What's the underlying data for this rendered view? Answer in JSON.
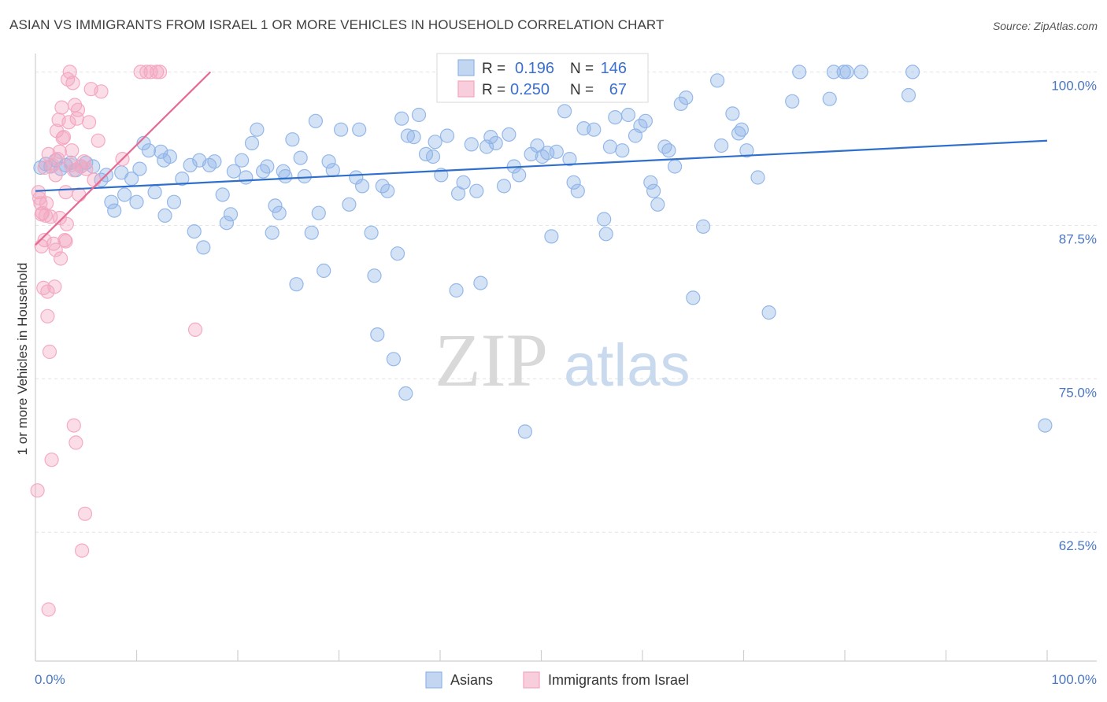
{
  "chart_data": {
    "type": "scatter",
    "title": "ASIAN VS IMMIGRANTS FROM ISRAEL 1 OR MORE VEHICLES IN HOUSEHOLD CORRELATION CHART",
    "source": "Source: ZipAtlas.com",
    "xlabel": "",
    "ylabel": "1 or more Vehicles in Household",
    "xlim": [
      0,
      100
    ],
    "ylim": [
      52,
      101.5
    ],
    "x_tick_labels": {
      "left": "0.0%",
      "right": "100.0%"
    },
    "y_ticks": [
      {
        "value": 100,
        "label": "100.0%"
      },
      {
        "value": 87.5,
        "label": "87.5%"
      },
      {
        "value": 75,
        "label": "75.0%"
      },
      {
        "value": 62.5,
        "label": "62.5%"
      }
    ],
    "grid": true,
    "legend": {
      "placement": "top-center",
      "entries": [
        {
          "r_label": "R =",
          "r_value": "0.196",
          "n_label": "N =",
          "n_value": "146"
        },
        {
          "r_label": "R =",
          "r_value": "0.250",
          "n_label": "N =",
          "n_value": "67"
        }
      ]
    },
    "watermark": {
      "zip": "ZIP",
      "atlas": "atlas"
    },
    "series": [
      {
        "name": "Asians",
        "color": "#8fb4e8",
        "line_color": "#2f6fcc",
        "trend": {
          "x": [
            0,
            100
          ],
          "y": [
            90.3,
            94.4
          ]
        },
        "points": [
          [
            0.5,
            92.2
          ],
          [
            1,
            92.5
          ],
          [
            1.5,
            92.3
          ],
          [
            2,
            92.8
          ],
          [
            2.5,
            92.1
          ],
          [
            3,
            92.4
          ],
          [
            3.5,
            92.6
          ],
          [
            4,
            92.0
          ],
          [
            4.5,
            92.3
          ],
          [
            5,
            92.6
          ],
          [
            5.7,
            92.3
          ],
          [
            6.5,
            91.2
          ],
          [
            7,
            91.6
          ],
          [
            7.5,
            89.4
          ],
          [
            7.8,
            88.7
          ],
          [
            8.5,
            91.8
          ],
          [
            8.8,
            90.0
          ],
          [
            9.5,
            91.3
          ],
          [
            10,
            89.4
          ],
          [
            10.3,
            92.1
          ],
          [
            10.7,
            94.2
          ],
          [
            11.2,
            93.6
          ],
          [
            11.8,
            90.2
          ],
          [
            12.4,
            93.5
          ],
          [
            12.7,
            92.8
          ],
          [
            13.3,
            93.1
          ],
          [
            13.7,
            89.4
          ],
          [
            14.5,
            91.3
          ],
          [
            15.3,
            92.4
          ],
          [
            15.7,
            87.0
          ],
          [
            16.2,
            92.8
          ],
          [
            16.6,
            85.7
          ],
          [
            17.2,
            92.4
          ],
          [
            17.7,
            92.7
          ],
          [
            18.5,
            90.0
          ],
          [
            18.9,
            87.7
          ],
          [
            19.3,
            88.4
          ],
          [
            19.6,
            91.9
          ],
          [
            20.4,
            92.8
          ],
          [
            20.8,
            91.4
          ],
          [
            21.4,
            94.2
          ],
          [
            21.9,
            95.3
          ],
          [
            22.5,
            91.9
          ],
          [
            22.9,
            92.3
          ],
          [
            23.4,
            86.9
          ],
          [
            23.7,
            89.1
          ],
          [
            24.1,
            88.5
          ],
          [
            24.7,
            91.5
          ],
          [
            25.4,
            94.5
          ],
          [
            25.8,
            82.7
          ],
          [
            26.2,
            93.0
          ],
          [
            26.6,
            91.5
          ],
          [
            27.3,
            86.9
          ],
          [
            27.7,
            96.0
          ],
          [
            28,
            88.5
          ],
          [
            28.5,
            83.8
          ],
          [
            29,
            92.7
          ],
          [
            29.4,
            92.0
          ],
          [
            30.2,
            95.3
          ],
          [
            31,
            89.2
          ],
          [
            31.7,
            91.4
          ],
          [
            32,
            95.3
          ],
          [
            32.3,
            90.7
          ],
          [
            33.2,
            86.9
          ],
          [
            33.5,
            83.4
          ],
          [
            33.8,
            78.6
          ],
          [
            34.3,
            90.7
          ],
          [
            34.8,
            90.3
          ],
          [
            35.4,
            76.6
          ],
          [
            35.8,
            85.2
          ],
          [
            36.2,
            96.2
          ],
          [
            36.8,
            94.8
          ],
          [
            37.4,
            94.7
          ],
          [
            37.9,
            96.5
          ],
          [
            38.6,
            93.3
          ],
          [
            39.3,
            93.1
          ],
          [
            40.1,
            91.6
          ],
          [
            40.7,
            94.8
          ],
          [
            41.6,
            82.2
          ],
          [
            41.8,
            90.1
          ],
          [
            42.3,
            91.0
          ],
          [
            43.1,
            94.1
          ],
          [
            43.6,
            90.3
          ],
          [
            44,
            82.8
          ],
          [
            44.6,
            93.9
          ],
          [
            45,
            94.7
          ],
          [
            45.5,
            94.2
          ],
          [
            46.3,
            90.7
          ],
          [
            46.8,
            94.9
          ],
          [
            47.3,
            92.3
          ],
          [
            47.8,
            91.6
          ],
          [
            48.4,
            70.7
          ],
          [
            49,
            93.3
          ],
          [
            49.6,
            94.0
          ],
          [
            50.1,
            93.1
          ],
          [
            50.6,
            93.4
          ],
          [
            51,
            86.6
          ],
          [
            51.5,
            93.5
          ],
          [
            52.3,
            96.8
          ],
          [
            52.8,
            92.9
          ],
          [
            53.2,
            91.0
          ],
          [
            53.6,
            90.3
          ],
          [
            54.2,
            95.4
          ],
          [
            55.2,
            95.3
          ],
          [
            56.2,
            88.0
          ],
          [
            56.4,
            86.8
          ],
          [
            56.8,
            93.9
          ],
          [
            57.3,
            96.3
          ],
          [
            58,
            93.6
          ],
          [
            58.6,
            96.5
          ],
          [
            59.3,
            94.8
          ],
          [
            59.8,
            95.6
          ],
          [
            60.3,
            96.0
          ],
          [
            60.8,
            91.0
          ],
          [
            61.1,
            90.3
          ],
          [
            61.5,
            89.2
          ],
          [
            62.2,
            93.9
          ],
          [
            62.6,
            93.6
          ],
          [
            63.2,
            92.3
          ],
          [
            63.8,
            97.4
          ],
          [
            64.3,
            97.9
          ],
          [
            65,
            81.6
          ],
          [
            66,
            87.4
          ],
          [
            67.4,
            99.3
          ],
          [
            67.8,
            94.0
          ],
          [
            68.9,
            96.6
          ],
          [
            69.5,
            95.0
          ],
          [
            69.8,
            95.3
          ],
          [
            70.3,
            93.6
          ],
          [
            71.4,
            91.4
          ],
          [
            72.5,
            80.4
          ],
          [
            74.8,
            97.6
          ],
          [
            75.5,
            100
          ],
          [
            78.5,
            97.8
          ],
          [
            78.9,
            100
          ],
          [
            79.9,
            100
          ],
          [
            80.2,
            100
          ],
          [
            81.6,
            100
          ],
          [
            86.3,
            98.1
          ],
          [
            86.7,
            100
          ],
          [
            99.8,
            71.2
          ],
          [
            12.8,
            88.3
          ],
          [
            36.6,
            73.8
          ],
          [
            39.5,
            94.3
          ],
          [
            24.5,
            91.9
          ]
        ]
      },
      {
        "name": "Immigrants from Israel",
        "color": "#f3a6c0",
        "line_color": "#e56a93",
        "trend": {
          "x": [
            0,
            17.3
          ],
          "y": [
            85.9,
            100.0
          ]
        },
        "points": [
          [
            0.2,
            65.9
          ],
          [
            0.3,
            90.2
          ],
          [
            0.4,
            89.7
          ],
          [
            0.5,
            89.3
          ],
          [
            0.6,
            88.4
          ],
          [
            0.6,
            85.8
          ],
          [
            0.7,
            88.5
          ],
          [
            0.8,
            82.4
          ],
          [
            0.9,
            86.3
          ],
          [
            0.9,
            92.2
          ],
          [
            1.0,
            88.3
          ],
          [
            1.1,
            89.3
          ],
          [
            1.2,
            82.1
          ],
          [
            1.2,
            80.1
          ],
          [
            1.3,
            93.3
          ],
          [
            1.4,
            77.2
          ],
          [
            1.5,
            88.2
          ],
          [
            1.6,
            68.4
          ],
          [
            1.7,
            92.4
          ],
          [
            1.8,
            86.0
          ],
          [
            1.9,
            82.5
          ],
          [
            2.0,
            85.5
          ],
          [
            2.0,
            91.6
          ],
          [
            2.1,
            95.2
          ],
          [
            2.2,
            92.9
          ],
          [
            2.3,
            96.1
          ],
          [
            2.4,
            93.5
          ],
          [
            2.4,
            88.1
          ],
          [
            2.5,
            84.8
          ],
          [
            2.6,
            97.1
          ],
          [
            2.7,
            94.6
          ],
          [
            2.8,
            94.7
          ],
          [
            2.9,
            86.3
          ],
          [
            3.0,
            86.2
          ],
          [
            3.0,
            90.2
          ],
          [
            3.1,
            87.6
          ],
          [
            3.2,
            99.4
          ],
          [
            3.3,
            95.9
          ],
          [
            3.4,
            100.0
          ],
          [
            3.5,
            92.4
          ],
          [
            3.6,
            93.6
          ],
          [
            3.7,
            99.1
          ],
          [
            3.8,
            71.2
          ],
          [
            3.8,
            92.0
          ],
          [
            3.9,
            97.3
          ],
          [
            4.0,
            69.8
          ],
          [
            4.1,
            96.2
          ],
          [
            4.2,
            96.9
          ],
          [
            4.3,
            90.0
          ],
          [
            4.5,
            92.3
          ],
          [
            4.6,
            61.0
          ],
          [
            4.8,
            92.7
          ],
          [
            4.9,
            64.0
          ],
          [
            5.0,
            92.1
          ],
          [
            5.3,
            95.9
          ],
          [
            5.5,
            98.6
          ],
          [
            5.8,
            91.2
          ],
          [
            6.2,
            94.4
          ],
          [
            6.5,
            98.4
          ],
          [
            8.6,
            92.9
          ],
          [
            10.4,
            100.0
          ],
          [
            11.0,
            100.0
          ],
          [
            11.4,
            100.0
          ],
          [
            12.0,
            100.0
          ],
          [
            12.3,
            100.0
          ],
          [
            15.8,
            79.0
          ],
          [
            1.3,
            56.2
          ]
        ]
      }
    ]
  }
}
